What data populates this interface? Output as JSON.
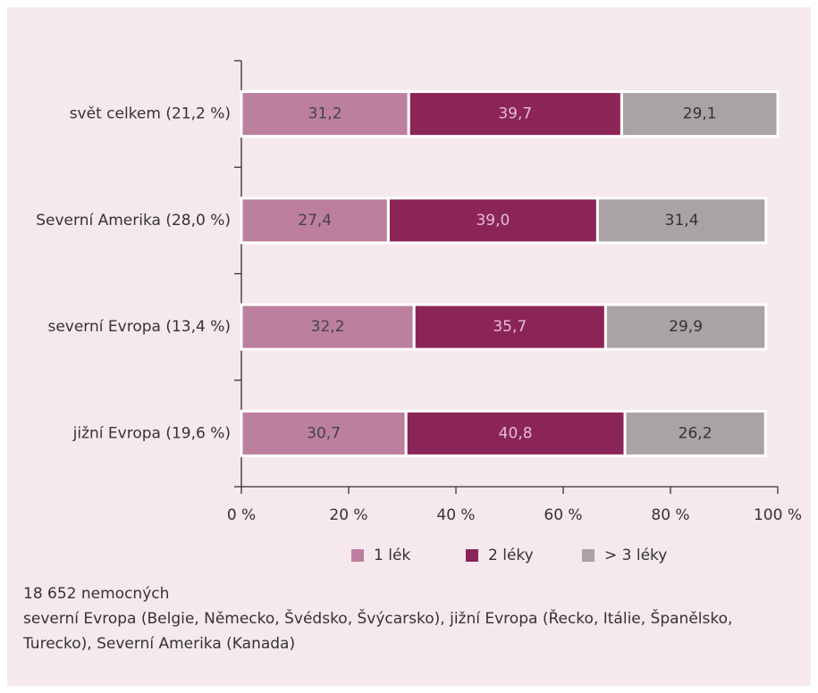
{
  "chart_data": {
    "type": "stacked-barh",
    "categories": [
      "svět celkem (21,2 %)",
      "Severní Amerika (28,0 %)",
      "severní Evropa (13,4 %)",
      "jižní Evropa (19,6 %)"
    ],
    "series": [
      {
        "name": "1 lék",
        "color": "#bd7f9e",
        "values": [
          31.2,
          27.4,
          32.2,
          30.7
        ],
        "value_labels": [
          "31,2",
          "27,4",
          "32,2",
          "30,7"
        ]
      },
      {
        "name": "2 léky",
        "color": "#8b2558",
        "values": [
          39.7,
          39.0,
          35.7,
          40.8
        ],
        "value_labels": [
          "39,7",
          "39,0",
          "35,7",
          "40,8"
        ]
      },
      {
        "name": "> 3 léky",
        "color": "#a9a3a6",
        "values": [
          29.1,
          31.4,
          29.9,
          26.2
        ],
        "value_labels": [
          "29,1",
          "31,4",
          "29,9",
          "26,2"
        ]
      }
    ],
    "xlim": [
      0,
      100
    ],
    "xticks": [
      {
        "value": 0,
        "label": "0 %"
      },
      {
        "value": 20,
        "label": "20 %"
      },
      {
        "value": 40,
        "label": "40 %"
      },
      {
        "value": 60,
        "label": "60 %"
      },
      {
        "value": 80,
        "label": "80 %"
      },
      {
        "value": 100,
        "label": "100 %"
      }
    ],
    "legend": "bottom",
    "notes": [
      "18 652 nemocných",
      "severní Evropa (Belgie, Německo, Švédsko, Švýcarsko), jižní Evropa (Řecko, Itálie, Španělsko, Turecko), Severní Amerika (Kanada)"
    ]
  }
}
